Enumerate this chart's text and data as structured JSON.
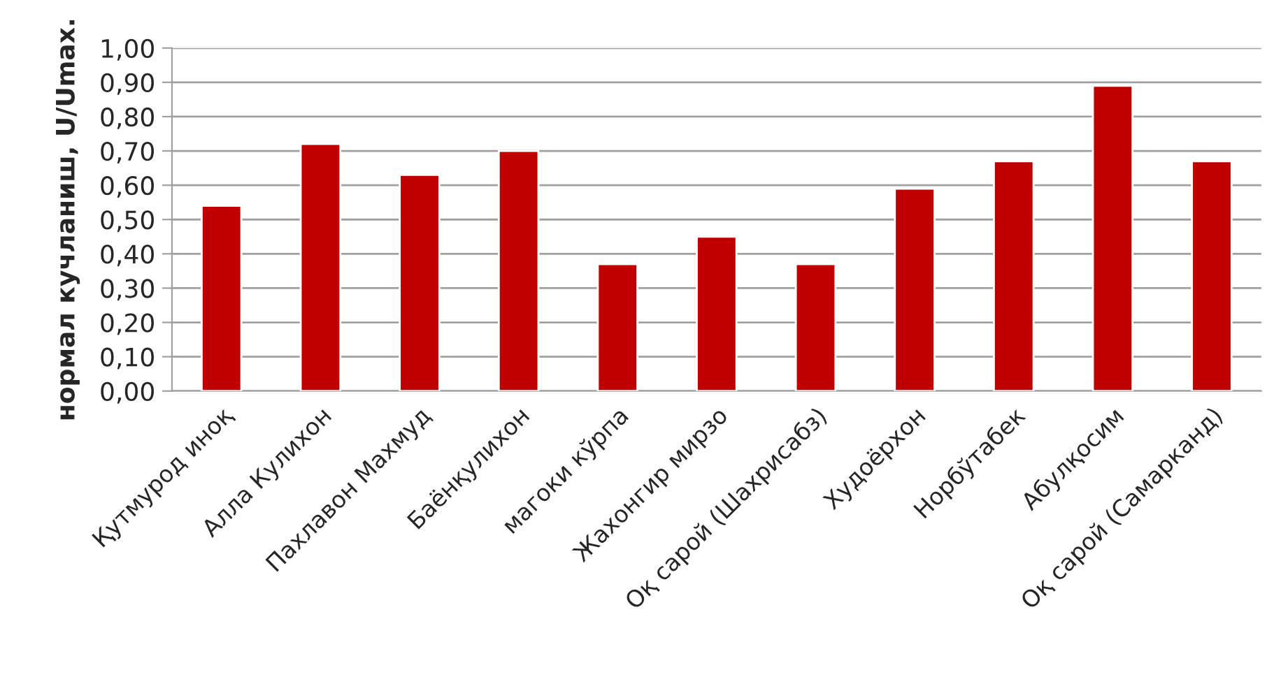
{
  "chart_data": {
    "type": "bar",
    "ylabel": "нормал кучланиш, U/Umax.",
    "categories": [
      "Қутмурод иноқ",
      "Алла Кулихон",
      "Пахлавон Махмуд",
      "Баёнқулихон",
      "магоки кўрпа",
      "Жахонгир мирзо",
      "Оқ сарой (Шахрисабз)",
      "Худоёрхон",
      "Норбўтабек",
      "Абулқосим",
      "Оқ сарой (Самарканд)"
    ],
    "values": [
      0.54,
      0.72,
      0.63,
      0.7,
      0.37,
      0.45,
      0.37,
      0.59,
      0.67,
      0.89,
      0.67
    ],
    "color": "#c00000",
    "ylim": [
      0,
      1
    ],
    "yticks": [
      {
        "value": 0,
        "label": "0,00"
      },
      {
        "value": 0.1,
        "label": "0,10"
      },
      {
        "value": 0.2,
        "label": "0,20"
      },
      {
        "value": 0.3,
        "label": "0,30"
      },
      {
        "value": 0.4,
        "label": "0,40"
      },
      {
        "value": 0.5,
        "label": "0,50"
      },
      {
        "value": 0.6,
        "label": "0,60"
      },
      {
        "value": 0.7,
        "label": "0,70"
      },
      {
        "value": 0.8,
        "label": "0,80"
      },
      {
        "value": 0.9,
        "label": "0,90"
      },
      {
        "value": 1.0,
        "label": "1,00"
      }
    ],
    "grid": "y"
  }
}
